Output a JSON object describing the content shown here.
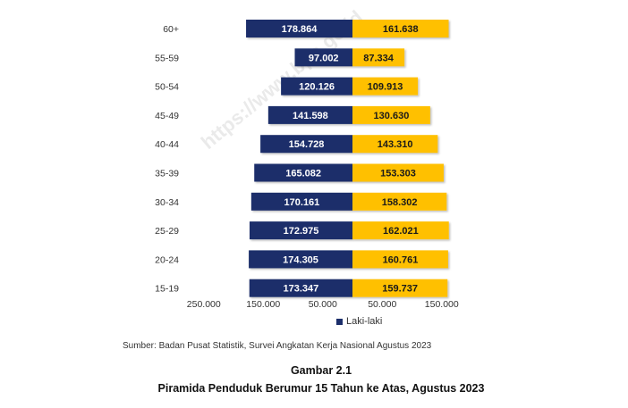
{
  "chart_data": {
    "type": "bar",
    "orientation": "horizontal-population-pyramid",
    "categories": [
      "60+",
      "55-59",
      "50-54",
      "45-49",
      "40-44",
      "35-39",
      "30-34",
      "25-29",
      "20-24",
      "15-19"
    ],
    "series": [
      {
        "name": "Laki-laki",
        "color": "#1c2f6b",
        "values": [
          178864,
          97002,
          120126,
          141598,
          154728,
          165082,
          170161,
          172975,
          174305,
          173347
        ],
        "labels": [
          "178.864",
          "97.002",
          "120.126",
          "141.598",
          "154.728",
          "165.082",
          "170.161",
          "172.975",
          "174.305",
          "173.347"
        ]
      },
      {
        "color": "#ffc000",
        "values": [
          161638,
          87334,
          109913,
          130630,
          143310,
          153303,
          158302,
          162021,
          160761,
          159737
        ],
        "labels": [
          "161.638",
          "87.334",
          "109.913",
          "130.630",
          "143.310",
          "153.303",
          "158.302",
          "162.021",
          "160.761",
          "159.737"
        ]
      }
    ],
    "x_ticks": [
      "250.000",
      "150.000",
      "50.000",
      "50.000",
      "150.000"
    ],
    "xlim": [
      -250000,
      150000
    ],
    "legend_position": "bottom-center",
    "grid": false
  },
  "watermark": "https://www.bps.go.id",
  "source": "Sumber: Badan Pusat Statistik, Survei Angkatan Kerja Nasional Agustus 2023",
  "figure_number": "Gambar 2.1",
  "figure_title": "Piramida Penduduk Berumur 15 Tahun ke Atas, Agustus 2023"
}
